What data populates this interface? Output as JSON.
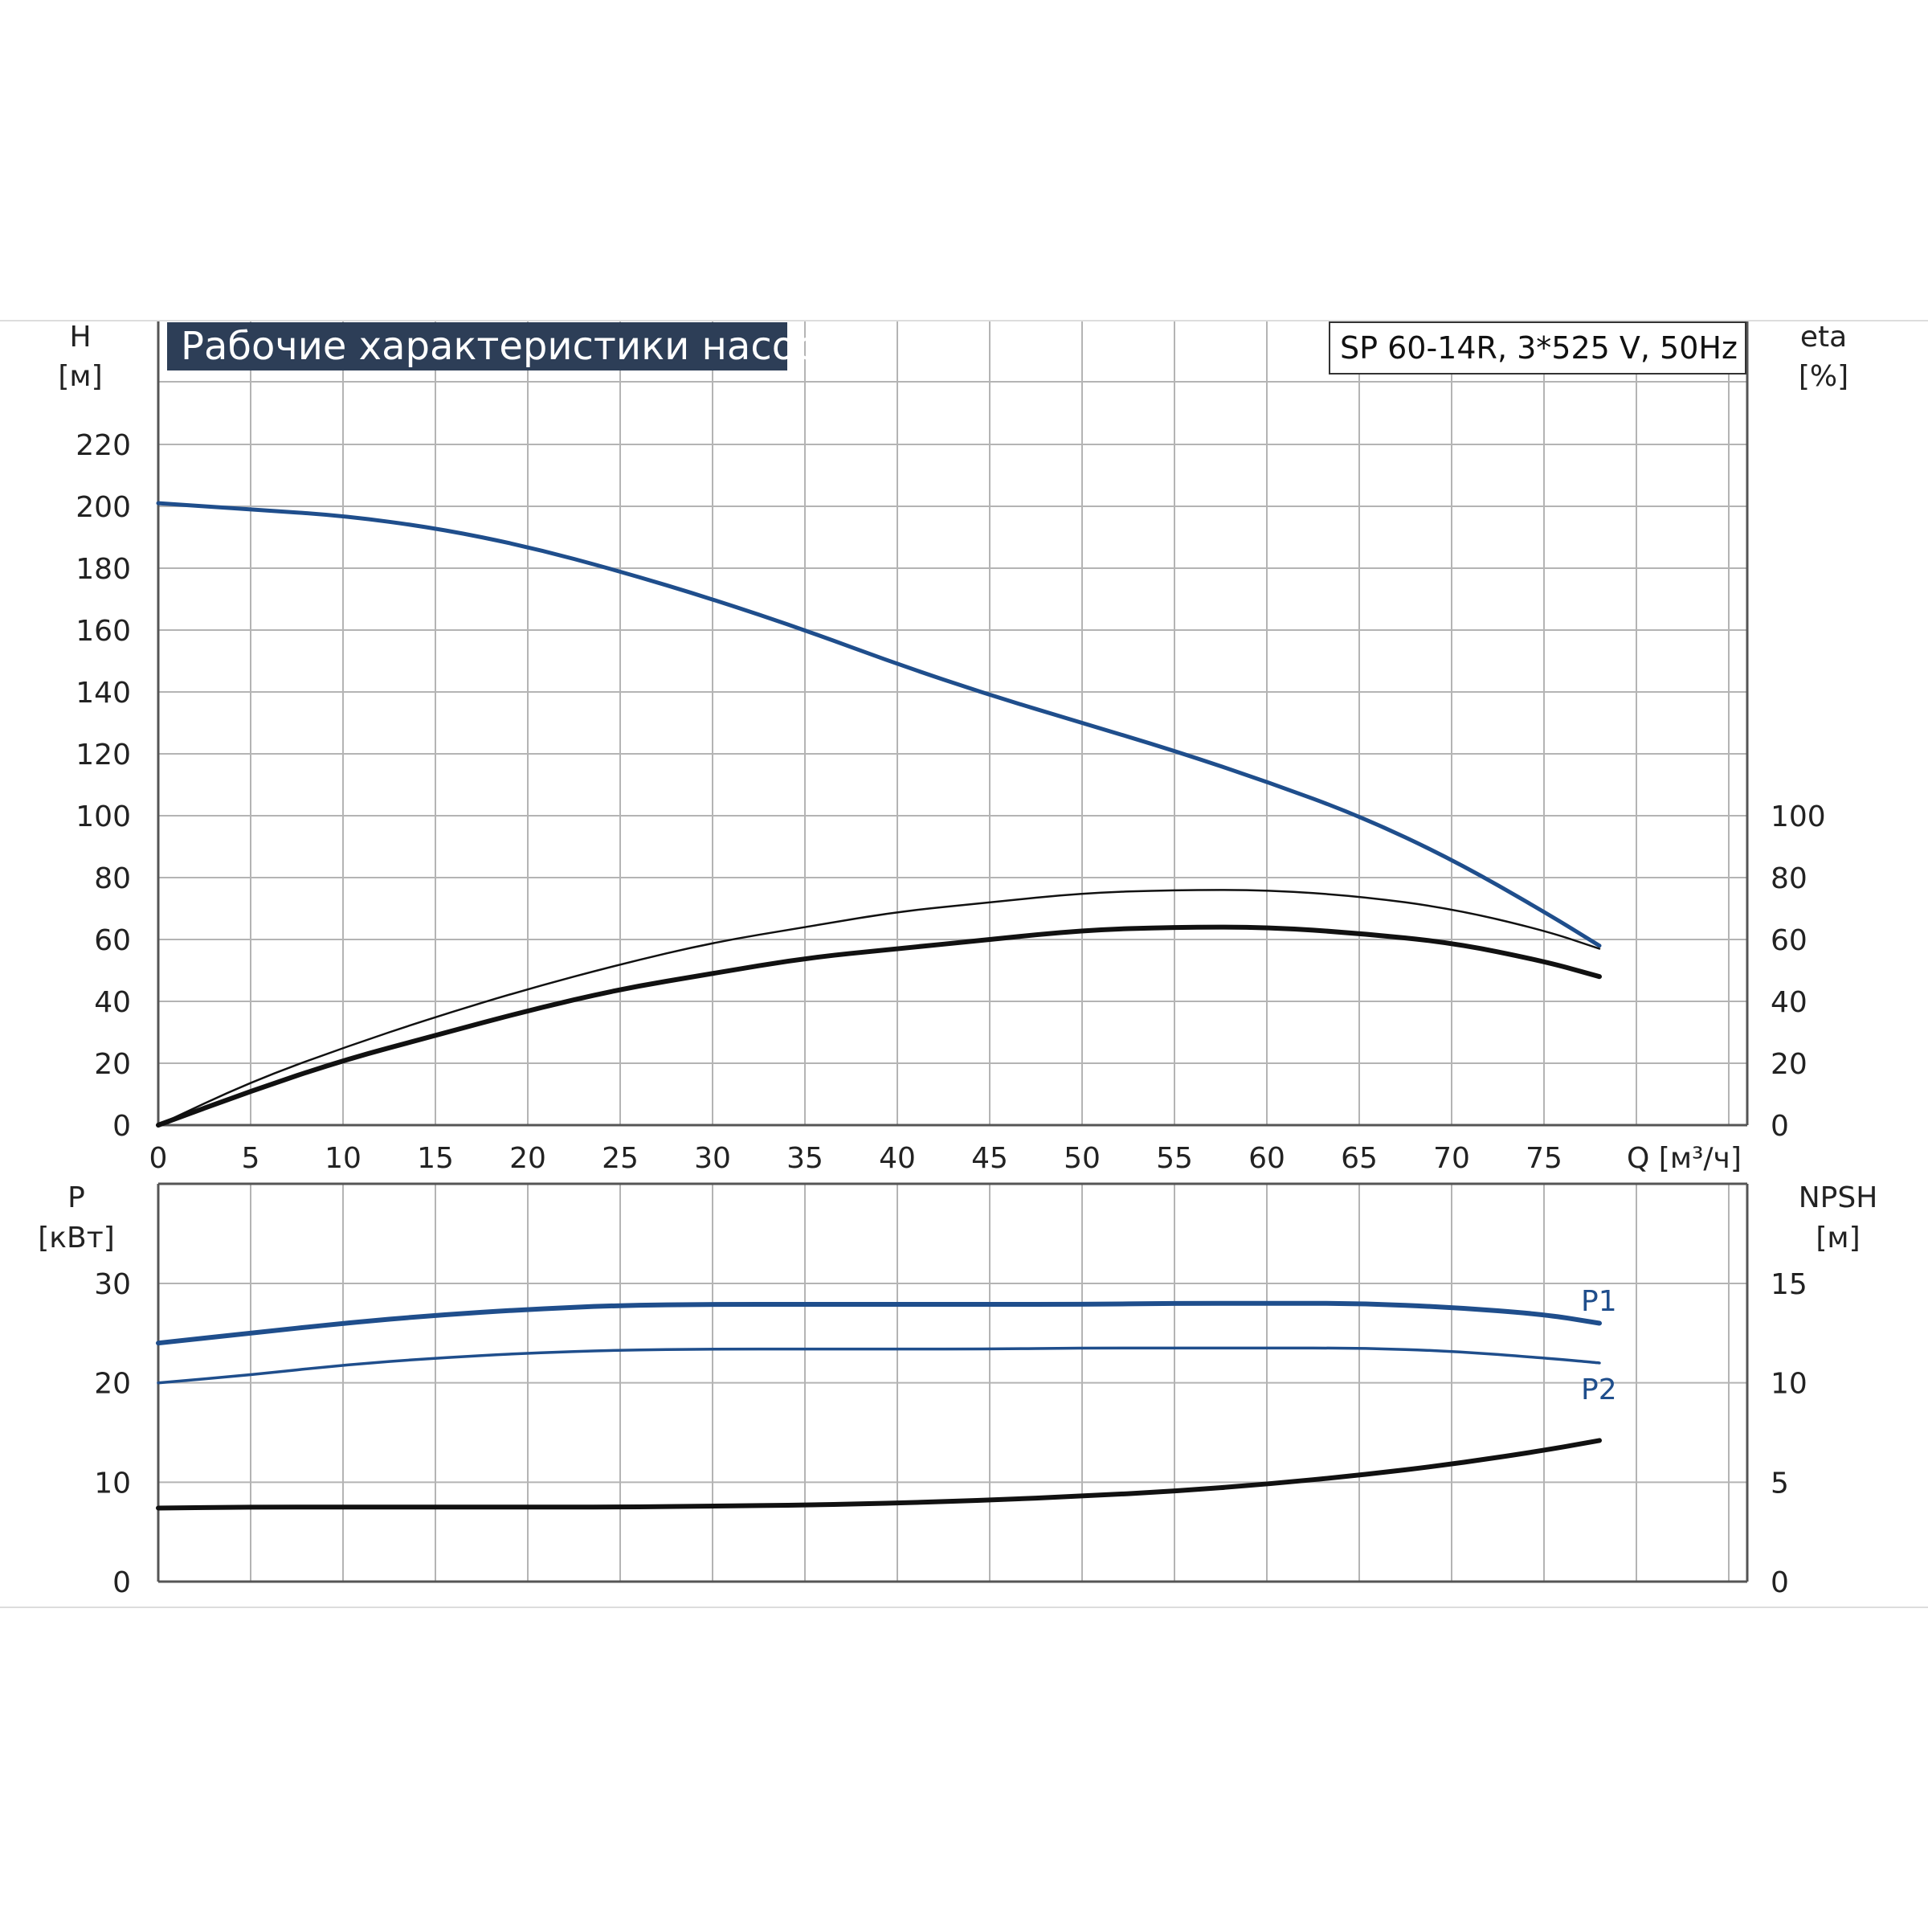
{
  "chart_title": "Рабочие характеристики насоса",
  "model_label": "SP 60-14R, 3*525 V, 50Hz",
  "colors": {
    "blue": "#1f4e8c",
    "black": "#111111",
    "grid": "#b4b4b4",
    "title_bg": "#2d3e57"
  },
  "chart_data": [
    {
      "type": "line",
      "panel": "top",
      "xlabel": "Q [м³/ч]",
      "ylabel_left": "H",
      "ylabel_left_unit": "[м]",
      "ylabel_right": "eta",
      "ylabel_right_unit": "[%]",
      "xlim": [
        0,
        86
      ],
      "ylim": [
        0,
        220
      ],
      "xticks": [
        "0",
        "5",
        "10",
        "15",
        "20",
        "25",
        "30",
        "35",
        "40",
        "45",
        "50",
        "55",
        "60",
        "65",
        "70",
        "75"
      ],
      "yticks_left": [
        "0",
        "20",
        "40",
        "60",
        "80",
        "100",
        "120",
        "140",
        "160",
        "180",
        "200",
        "220"
      ],
      "yticks_right": [
        "0",
        "20",
        "40",
        "60",
        "80",
        "100"
      ],
      "grid": true,
      "series": [
        {
          "color": "#1f4e8c",
          "axis": "left",
          "width": 5,
          "x": [
            0,
            5,
            10,
            15,
            20,
            25,
            30,
            35,
            40,
            45,
            50,
            55,
            60,
            65,
            70,
            75,
            78
          ],
          "y": [
            201,
            199,
            197,
            193,
            187,
            179,
            170,
            160,
            149,
            139,
            130,
            121,
            111,
            100,
            86,
            69,
            58
          ]
        },
        {
          "color": "#111111",
          "axis": "right",
          "width": 2.5,
          "x": [
            0,
            5,
            10,
            15,
            20,
            25,
            30,
            35,
            40,
            45,
            50,
            55,
            60,
            65,
            70,
            75,
            78
          ],
          "y": [
            0,
            14,
            25,
            35,
            44,
            52,
            59,
            64,
            69,
            72,
            75,
            76,
            76,
            74,
            70,
            63,
            57
          ]
        },
        {
          "color": "#111111",
          "axis": "right",
          "width": 6,
          "x": [
            0,
            5,
            10,
            15,
            20,
            25,
            30,
            35,
            40,
            45,
            50,
            55,
            60,
            65,
            70,
            75,
            78
          ],
          "y": [
            0,
            11,
            21,
            29,
            37,
            44,
            49,
            54,
            57,
            60,
            63,
            64,
            64,
            62,
            59,
            53,
            48
          ]
        }
      ]
    },
    {
      "type": "line",
      "panel": "bottom",
      "ylabel_left": "P",
      "ylabel_left_unit": "[кВт]",
      "ylabel_right": "NPSH",
      "ylabel_right_unit": "[м]",
      "xlim": [
        0,
        86
      ],
      "ylim": [
        0,
        30
      ],
      "yticks_left": [
        "0",
        "10",
        "20",
        "30"
      ],
      "yticks_right": [
        "0",
        "5",
        "10",
        "15"
      ],
      "grid": true,
      "series": [
        {
          "name": "P1",
          "color": "#1f4e8c",
          "axis": "left",
          "width": 6,
          "x": [
            0,
            5,
            10,
            15,
            20,
            25,
            30,
            35,
            40,
            45,
            50,
            55,
            60,
            65,
            70,
            75,
            78
          ],
          "y": [
            24,
            25,
            26,
            26.8,
            27.4,
            27.8,
            27.9,
            27.9,
            27.9,
            27.9,
            27.9,
            28,
            28,
            28,
            27.6,
            26.9,
            26
          ]
        },
        {
          "name": "P2",
          "color": "#1f4e8c",
          "axis": "left",
          "width": 3.5,
          "x": [
            0,
            5,
            10,
            15,
            20,
            25,
            30,
            35,
            40,
            45,
            50,
            55,
            60,
            65,
            70,
            75,
            78
          ],
          "y": [
            20,
            20.8,
            21.8,
            22.5,
            23,
            23.3,
            23.4,
            23.4,
            23.4,
            23.4,
            23.5,
            23.5,
            23.5,
            23.5,
            23.2,
            22.5,
            22
          ]
        },
        {
          "color": "#111111",
          "axis": "right",
          "width": 6,
          "x": [
            0,
            5,
            10,
            15,
            20,
            25,
            30,
            35,
            40,
            45,
            50,
            55,
            60,
            65,
            70,
            75,
            78
          ],
          "y": [
            3.7,
            3.75,
            3.75,
            3.75,
            3.75,
            3.75,
            3.8,
            3.85,
            3.95,
            4.1,
            4.3,
            4.55,
            4.9,
            5.35,
            5.9,
            6.6,
            7.1
          ]
        }
      ]
    }
  ]
}
